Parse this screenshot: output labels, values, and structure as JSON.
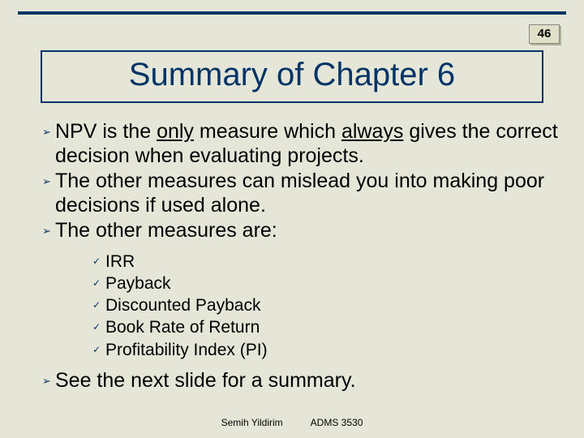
{
  "page_number": "46",
  "title": "Summary of Chapter 6",
  "bullets": [
    {
      "pre": "NPV is the ",
      "u1": "only",
      "mid": " measure which ",
      "u2": "always",
      "post": " gives the correct decision when evaluating projects."
    },
    {
      "text": "The other measures can mislead you into making poor decisions if used alone."
    },
    {
      "text": "The other measures are:"
    }
  ],
  "sub_bullets": [
    "IRR",
    "Payback",
    "Discounted Payback",
    "Book Rate of Return",
    "Profitability Index (PI)"
  ],
  "bullet_last": "See the next slide for a summary.",
  "footer_author": "Semih Yildirim",
  "footer_course": "ADMS 3530",
  "colors": {
    "background": "#e6e6d8",
    "accent": "#003366"
  }
}
